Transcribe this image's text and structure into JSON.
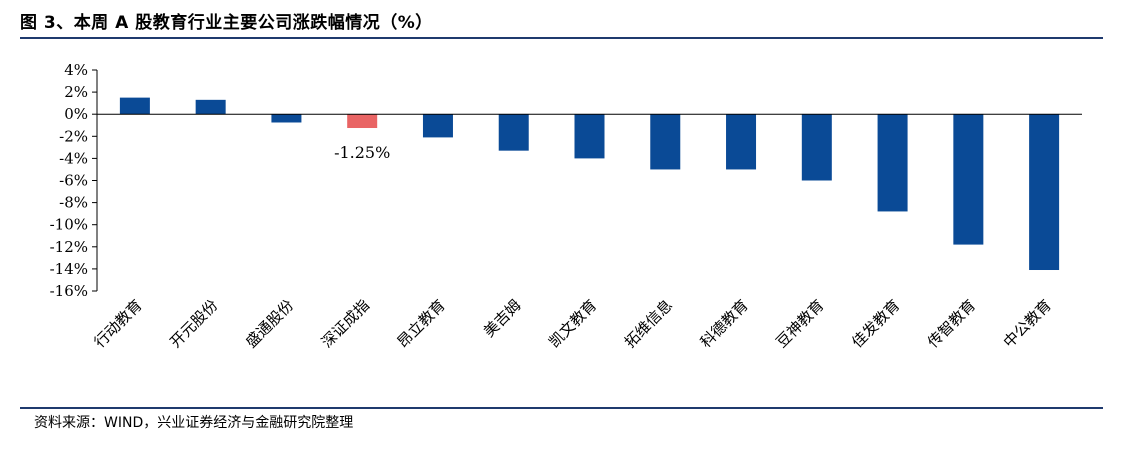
{
  "header": {
    "title": "图 3、本周 A 股教育行业主要公司涨跌幅情况（%）"
  },
  "footer": {
    "source": "资料来源：WIND，兴业证券经济与金融研究院整理"
  },
  "colors": {
    "bar": "#0a4a96",
    "highlight_bar": "#e96464",
    "rule": "#1f3a6e"
  },
  "chart_data": {
    "type": "bar",
    "title": "图 3、本周 A 股教育行业主要公司涨跌幅情况（%）",
    "xlabel": "",
    "ylabel": "",
    "categories": [
      "行动教育",
      "开元股份",
      "盛通股份",
      "深证成指",
      "昂立教育",
      "美吉姆",
      "凯文教育",
      "拓维信息",
      "科德教育",
      "豆神教育",
      "佳发教育",
      "传智教育",
      "中公教育"
    ],
    "values": [
      1.5,
      1.3,
      -0.75,
      -1.25,
      -2.1,
      -3.3,
      -4.0,
      -5.0,
      -5.0,
      -6.0,
      -8.8,
      -11.8,
      -14.1
    ],
    "highlight": "深证成指",
    "data_labels": [
      {
        "category": "深证成指",
        "text": "-1.25%"
      }
    ],
    "ylim": [
      -16,
      4
    ],
    "yticks": [
      4,
      2,
      0,
      -2,
      -4,
      -6,
      -8,
      -10,
      -12,
      -14,
      -16
    ],
    "ytick_labels": [
      "4%",
      "2%",
      "0%",
      "-2%",
      "-4%",
      "-6%",
      "-8%",
      "-10%",
      "-12%",
      "-14%",
      "-16%"
    ],
    "grid": false,
    "legend": "none"
  }
}
